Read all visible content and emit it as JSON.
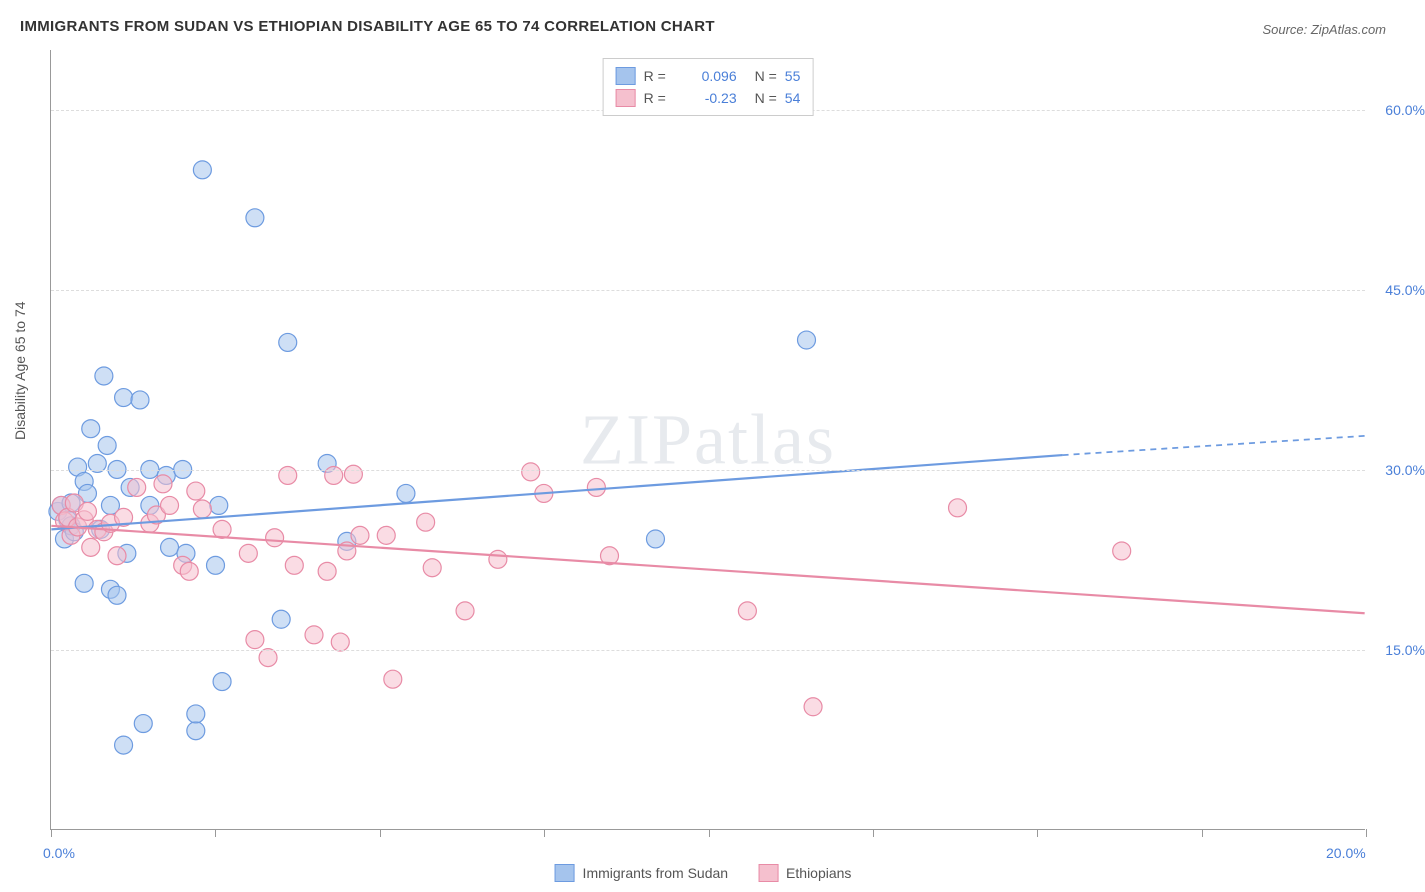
{
  "title": "IMMIGRANTS FROM SUDAN VS ETHIOPIAN DISABILITY AGE 65 TO 74 CORRELATION CHART",
  "source": "Source: ZipAtlas.com",
  "ylabel": "Disability Age 65 to 74",
  "watermark_bold": "ZIP",
  "watermark_thin": "atlas",
  "chart": {
    "type": "scatter",
    "xlim": [
      0,
      20
    ],
    "ylim": [
      0,
      65
    ],
    "xticks": [
      0,
      2.5,
      5,
      7.5,
      10,
      12.5,
      15,
      17.5,
      20
    ],
    "xlabels_shown": {
      "0": "0.0%",
      "20": "20.0%"
    },
    "yticks": [
      15,
      30,
      45,
      60
    ],
    "ylabels": {
      "15": "15.0%",
      "30": "30.0%",
      "45": "45.0%",
      "60": "60.0%"
    },
    "background_color": "#ffffff",
    "grid_color": "#dddddd",
    "axis_color": "#999999",
    "marker_radius": 9,
    "marker_opacity": 0.55,
    "line_width": 2.2,
    "series": [
      {
        "name": "Immigrants from Sudan",
        "color_fill": "#a5c4ed",
        "color_stroke": "#6d9be0",
        "r": 0.096,
        "n": 55,
        "points": [
          [
            0.1,
            26.5
          ],
          [
            0.15,
            27
          ],
          [
            0.2,
            24.2
          ],
          [
            0.25,
            25.8
          ],
          [
            0.3,
            27.2
          ],
          [
            0.3,
            25.3
          ],
          [
            0.35,
            24.8
          ],
          [
            0.4,
            30.2
          ],
          [
            0.5,
            29
          ],
          [
            0.5,
            20.5
          ],
          [
            0.55,
            28
          ],
          [
            0.6,
            33.4
          ],
          [
            0.7,
            30.5
          ],
          [
            0.75,
            25
          ],
          [
            0.8,
            37.8
          ],
          [
            0.85,
            32
          ],
          [
            0.9,
            20
          ],
          [
            0.9,
            27
          ],
          [
            1.0,
            30
          ],
          [
            1.0,
            19.5
          ],
          [
            1.1,
            36
          ],
          [
            1.1,
            7
          ],
          [
            1.15,
            23
          ],
          [
            1.2,
            28.5
          ],
          [
            1.35,
            35.8
          ],
          [
            1.4,
            8.8
          ],
          [
            1.5,
            27
          ],
          [
            1.5,
            30
          ],
          [
            1.75,
            29.5
          ],
          [
            1.8,
            23.5
          ],
          [
            2.0,
            30
          ],
          [
            2.05,
            23
          ],
          [
            2.2,
            8.2
          ],
          [
            2.2,
            9.6
          ],
          [
            2.3,
            55
          ],
          [
            2.5,
            22
          ],
          [
            2.55,
            27
          ],
          [
            2.6,
            12.3
          ],
          [
            3.1,
            51
          ],
          [
            3.5,
            17.5
          ],
          [
            3.6,
            40.6
          ],
          [
            4.2,
            30.5
          ],
          [
            4.5,
            24
          ],
          [
            5.4,
            28
          ],
          [
            9.2,
            24.2
          ],
          [
            11.5,
            40.8
          ]
        ],
        "trend": {
          "x1": 0,
          "y1": 25.0,
          "x2": 15.4,
          "y2": 31.2,
          "x_ext": 20,
          "y_ext": 32.8
        }
      },
      {
        "name": "Ethiopians",
        "color_fill": "#f5c0ce",
        "color_stroke": "#e88ba6",
        "r": -0.23,
        "n": 54,
        "points": [
          [
            0.15,
            27
          ],
          [
            0.2,
            25.7
          ],
          [
            0.25,
            26
          ],
          [
            0.3,
            24.5
          ],
          [
            0.35,
            27.2
          ],
          [
            0.4,
            25.2
          ],
          [
            0.5,
            25.8
          ],
          [
            0.55,
            26.5
          ],
          [
            0.6,
            23.5
          ],
          [
            0.7,
            25
          ],
          [
            0.8,
            24.8
          ],
          [
            0.9,
            25.5
          ],
          [
            1.0,
            22.8
          ],
          [
            1.1,
            26
          ],
          [
            1.3,
            28.5
          ],
          [
            1.5,
            25.5
          ],
          [
            1.6,
            26.2
          ],
          [
            1.7,
            28.8
          ],
          [
            1.8,
            27
          ],
          [
            2.0,
            22
          ],
          [
            2.1,
            21.5
          ],
          [
            2.2,
            28.2
          ],
          [
            2.3,
            26.7
          ],
          [
            2.6,
            25
          ],
          [
            3.0,
            23
          ],
          [
            3.1,
            15.8
          ],
          [
            3.3,
            14.3
          ],
          [
            3.4,
            24.3
          ],
          [
            3.6,
            29.5
          ],
          [
            3.7,
            22
          ],
          [
            4.0,
            16.2
          ],
          [
            4.2,
            21.5
          ],
          [
            4.3,
            29.5
          ],
          [
            4.4,
            15.6
          ],
          [
            4.5,
            23.2
          ],
          [
            4.6,
            29.6
          ],
          [
            4.7,
            24.5
          ],
          [
            5.1,
            24.5
          ],
          [
            5.2,
            12.5
          ],
          [
            5.7,
            25.6
          ],
          [
            5.8,
            21.8
          ],
          [
            6.3,
            18.2
          ],
          [
            6.8,
            22.5
          ],
          [
            7.3,
            29.8
          ],
          [
            7.5,
            28
          ],
          [
            8.3,
            28.5
          ],
          [
            8.5,
            22.8
          ],
          [
            10.6,
            18.2
          ],
          [
            11.6,
            10.2
          ],
          [
            13.8,
            26.8
          ],
          [
            16.3,
            23.2
          ]
        ],
        "trend": {
          "x1": 0,
          "y1": 25.3,
          "x2": 20,
          "y2": 18.0
        }
      }
    ]
  },
  "legend_bottom": [
    {
      "label": "Immigrants from Sudan",
      "fill": "#a5c4ed",
      "stroke": "#6d9be0"
    },
    {
      "label": "Ethiopians",
      "fill": "#f5c0ce",
      "stroke": "#e88ba6"
    }
  ],
  "colors": {
    "title_text": "#333333",
    "source_text": "#666666",
    "axis_val": "#4a7fd8",
    "ylabel_text": "#555555"
  }
}
